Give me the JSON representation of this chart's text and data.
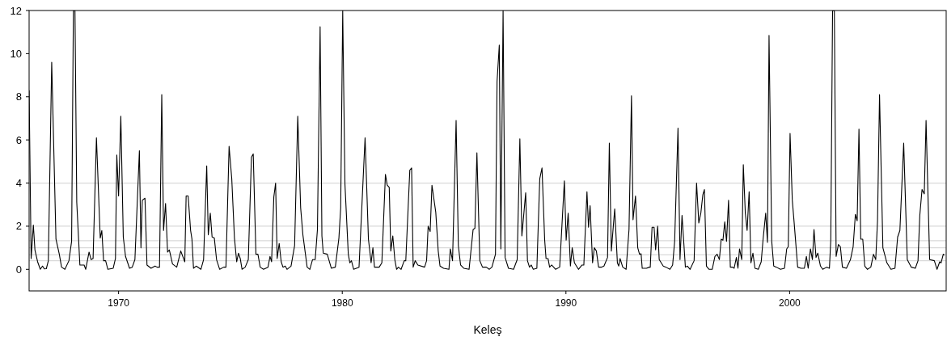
{
  "chart_data": {
    "type": "line",
    "xlabel": "Keleş",
    "xlim": [
      1966,
      2007
    ],
    "xticks": [
      1970,
      1980,
      1990,
      2000
    ],
    "ylim": [
      -1,
      12
    ],
    "yticks": [
      0,
      2,
      4,
      6,
      8,
      10,
      12
    ],
    "grid": false,
    "marker": "none",
    "line_style": "solid",
    "ref_lines": [
      {
        "axis": "y",
        "value": 0.4,
        "color": "#d9d9d9"
      },
      {
        "axis": "y",
        "value": 0.67,
        "color": "#d9d9d9"
      },
      {
        "axis": "y",
        "value": 1,
        "color": "#d9d9d9"
      },
      {
        "axis": "y",
        "value": 1.33,
        "color": "#d9d9d9"
      },
      {
        "axis": "y",
        "value": 2,
        "color": "#d9d9d9"
      },
      {
        "axis": "y",
        "value": 4,
        "color": "#d9d9d9"
      }
    ],
    "series": [
      {
        "color": "#000000",
        "x": [
          1966.0,
          1966.09,
          1966.19,
          1966.26,
          1966.38,
          1966.5,
          1966.6,
          1966.68,
          1966.77,
          1966.86,
          1967.01,
          1967.2,
          1967.35,
          1967.45,
          1967.6,
          1967.78,
          1967.9,
          1967.98,
          1968.05,
          1968.13,
          1968.27,
          1968.46,
          1968.53,
          1968.68,
          1968.77,
          1968.86,
          1969.01,
          1969.18,
          1969.25,
          1969.33,
          1969.42,
          1969.52,
          1969.76,
          1969.86,
          1969.92,
          1970.0,
          1970.1,
          1970.21,
          1970.31,
          1970.49,
          1970.61,
          1970.73,
          1970.93,
          1971.0,
          1971.06,
          1971.18,
          1971.27,
          1971.45,
          1971.63,
          1971.72,
          1971.83,
          1971.93,
          1972.01,
          1972.1,
          1972.19,
          1972.27,
          1972.41,
          1972.6,
          1972.78,
          1972.96,
          1973.02,
          1973.11,
          1973.22,
          1973.28,
          1973.35,
          1973.47,
          1973.68,
          1973.8,
          1973.94,
          1974.01,
          1974.1,
          1974.18,
          1974.28,
          1974.38,
          1974.52,
          1974.7,
          1974.8,
          1974.94,
          1975.06,
          1975.18,
          1975.28,
          1975.36,
          1975.44,
          1975.52,
          1975.66,
          1975.8,
          1975.94,
          1976.02,
          1976.14,
          1976.23,
          1976.33,
          1976.48,
          1976.68,
          1976.77,
          1976.84,
          1976.94,
          1977.02,
          1977.09,
          1977.18,
          1977.27,
          1977.35,
          1977.45,
          1977.53,
          1977.71,
          1977.87,
          1978.01,
          1978.14,
          1978.24,
          1978.43,
          1978.55,
          1978.67,
          1978.79,
          1978.89,
          1979.01,
          1979.09,
          1979.15,
          1979.33,
          1979.51,
          1979.69,
          1979.85,
          1979.93,
          1980.02,
          1980.12,
          1980.27,
          1980.34,
          1980.41,
          1980.51,
          1980.75,
          1980.97,
          1981.02,
          1981.17,
          1981.29,
          1981.37,
          1981.44,
          1981.65,
          1981.77,
          1981.93,
          1982.01,
          1982.1,
          1982.17,
          1982.26,
          1982.35,
          1982.43,
          1982.51,
          1982.63,
          1982.77,
          1982.84,
          1983.02,
          1983.1,
          1983.17,
          1983.26,
          1983.38,
          1983.68,
          1983.77,
          1983.84,
          1983.93,
          1984.01,
          1984.18,
          1984.29,
          1984.37,
          1984.53,
          1984.77,
          1984.83,
          1984.93,
          1985.09,
          1985.19,
          1985.29,
          1985.43,
          1985.67,
          1985.85,
          1985.93,
          1986.02,
          1986.15,
          1986.27,
          1986.44,
          1986.57,
          1986.69,
          1986.85,
          1986.92,
          1987.02,
          1987.09,
          1987.19,
          1987.28,
          1987.43,
          1987.66,
          1987.82,
          1987.94,
          1988.03,
          1988.2,
          1988.28,
          1988.37,
          1988.45,
          1988.54,
          1988.7,
          1988.83,
          1988.93,
          1989.05,
          1989.11,
          1989.2,
          1989.27,
          1989.36,
          1989.54,
          1989.72,
          1989.93,
          1990.01,
          1990.1,
          1990.2,
          1990.28,
          1990.38,
          1990.56,
          1990.72,
          1990.8,
          1990.94,
          1991.01,
          1991.08,
          1991.19,
          1991.27,
          1991.36,
          1991.46,
          1991.58,
          1991.7,
          1991.86,
          1991.94,
          1992.03,
          1992.18,
          1992.3,
          1992.36,
          1992.42,
          1992.54,
          1992.69,
          1992.82,
          1992.93,
          1993.0,
          1993.11,
          1993.21,
          1993.29,
          1993.36,
          1993.41,
          1993.6,
          1993.73,
          1993.77,
          1993.85,
          1993.94,
          1994.01,
          1994.1,
          1994.17,
          1994.35,
          1994.47,
          1994.65,
          1994.77,
          1994.86,
          1995.01,
          1995.1,
          1995.19,
          1995.34,
          1995.43,
          1995.55,
          1995.73,
          1995.84,
          1995.94,
          1996.03,
          1996.12,
          1996.19,
          1996.28,
          1996.4,
          1996.54,
          1996.66,
          1996.76,
          1996.86,
          1996.94,
          1997.02,
          1997.1,
          1997.18,
          1997.27,
          1997.35,
          1997.45,
          1997.52,
          1997.62,
          1997.69,
          1997.76,
          1997.86,
          1997.93,
          1998.02,
          1998.1,
          1998.19,
          1998.27,
          1998.36,
          1998.45,
          1998.6,
          1998.73,
          1998.81,
          1998.93,
          1999.01,
          1999.08,
          1999.2,
          1999.29,
          1999.41,
          1999.59,
          1999.77,
          1999.87,
          1999.94,
          2000.02,
          2000.12,
          2000.2,
          2000.36,
          2000.51,
          2000.66,
          2000.75,
          2000.83,
          2000.93,
          2001.02,
          2001.09,
          2001.18,
          2001.26,
          2001.38,
          2001.48,
          2001.66,
          2001.78,
          2001.84,
          2001.92,
          2002.0,
          2002.08,
          2002.18,
          2002.27,
          2002.36,
          2002.54,
          2002.72,
          2002.84,
          2002.94,
          2003.02,
          2003.1,
          2003.18,
          2003.27,
          2003.36,
          2003.48,
          2003.63,
          2003.75,
          2003.85,
          2003.93,
          2004.02,
          2004.17,
          2004.35,
          2004.53,
          2004.71,
          2004.83,
          2004.93,
          2005.1,
          2005.26,
          2005.44,
          2005.62,
          2005.74,
          2005.82,
          2005.92,
          2006.02,
          2006.1,
          2006.26,
          2006.47,
          2006.59,
          2006.71,
          2006.77,
          2006.87,
          2006.92
        ],
        "values": [
          8.3,
          0.5,
          2.05,
          0.9,
          0.35,
          0.0,
          0.15,
          0.02,
          0.03,
          0.4,
          9.6,
          1.4,
          0.7,
          0.1,
          0.0,
          0.4,
          1.3,
          12,
          12,
          3.1,
          0.2,
          0.2,
          0.0,
          0.8,
          0.45,
          0.5,
          6.1,
          1.45,
          1.8,
          0.4,
          0.4,
          0.0,
          0.05,
          0.5,
          5.3,
          3.4,
          7.1,
          1.5,
          0.6,
          0.05,
          0.1,
          0.45,
          5.5,
          1.0,
          3.2,
          3.3,
          0.2,
          0.05,
          0.15,
          0.1,
          0.1,
          8.1,
          1.8,
          3.05,
          0.8,
          0.9,
          0.25,
          0.1,
          0.85,
          0.35,
          3.4,
          3.4,
          1.8,
          1.4,
          0.05,
          0.15,
          0.0,
          0.45,
          4.8,
          1.6,
          2.6,
          1.5,
          1.45,
          0.45,
          0.0,
          0.1,
          0.1,
          5.7,
          4.2,
          1.45,
          0.35,
          0.75,
          0.5,
          0.0,
          0.1,
          0.45,
          5.2,
          5.35,
          0.7,
          0.7,
          0.1,
          0.0,
          0.1,
          0.6,
          0.35,
          3.35,
          4.0,
          0.5,
          1.2,
          0.35,
          0.1,
          0.15,
          0.0,
          0.15,
          1.1,
          7.1,
          2.85,
          1.6,
          0.1,
          0.0,
          0.45,
          0.45,
          1.85,
          11.25,
          1.55,
          0.75,
          0.7,
          0.05,
          0.1,
          1.45,
          2.85,
          12,
          3.95,
          0.7,
          0.3,
          0.4,
          0.0,
          0.1,
          5.0,
          6.1,
          1.4,
          0.3,
          1.0,
          0.1,
          0.1,
          0.3,
          4.4,
          3.9,
          3.8,
          0.85,
          1.55,
          0.45,
          0.0,
          0.1,
          0.0,
          0.4,
          0.4,
          4.6,
          4.7,
          0.1,
          0.4,
          0.2,
          0.1,
          0.4,
          2.0,
          1.75,
          3.9,
          2.65,
          0.85,
          0.15,
          0.05,
          0.0,
          0.95,
          0.4,
          6.9,
          1.1,
          0.2,
          0.05,
          0.0,
          1.85,
          1.9,
          5.4,
          0.4,
          0.1,
          0.1,
          0.0,
          0.1,
          0.7,
          8.7,
          10.4,
          0.95,
          12,
          0.55,
          0.05,
          0.0,
          0.45,
          6.05,
          1.55,
          3.55,
          0.4,
          0.1,
          0.2,
          0.0,
          0.05,
          4.2,
          4.7,
          1.35,
          0.5,
          0.5,
          0.1,
          0.2,
          0.0,
          0.1,
          4.1,
          1.35,
          2.6,
          0.15,
          1.0,
          0.3,
          0.0,
          0.2,
          0.2,
          3.6,
          1.95,
          2.95,
          0.3,
          1.0,
          0.85,
          0.1,
          0.1,
          0.15,
          0.55,
          5.85,
          0.85,
          2.8,
          0.3,
          0.15,
          0.5,
          0.1,
          0.0,
          1.85,
          8.05,
          2.3,
          3.4,
          1.0,
          0.7,
          0.72,
          0.05,
          0.05,
          0.1,
          0.1,
          1.95,
          1.95,
          0.9,
          2.0,
          0.45,
          0.15,
          0.1,
          0.0,
          0.2,
          1.3,
          6.55,
          0.45,
          2.5,
          0.1,
          0.15,
          0.0,
          0.4,
          4.0,
          2.15,
          2.6,
          3.45,
          3.7,
          0.15,
          0.0,
          0.0,
          0.6,
          0.7,
          0.45,
          1.4,
          1.35,
          2.2,
          1.3,
          3.2,
          0.1,
          0.1,
          0.05,
          0.55,
          0.05,
          0.95,
          0.45,
          4.85,
          2.6,
          1.8,
          3.6,
          0.3,
          0.75,
          0.05,
          0.0,
          0.35,
          1.35,
          2.6,
          1.25,
          10.85,
          1.3,
          0.15,
          0.1,
          0.0,
          0.05,
          0.95,
          1.05,
          6.3,
          3.2,
          2.2,
          0.1,
          0.05,
          0.05,
          0.6,
          0.05,
          0.95,
          0.45,
          1.85,
          0.55,
          0.75,
          0.15,
          0.0,
          0.1,
          0.05,
          1.35,
          12,
          12,
          0.6,
          1.15,
          1.05,
          0.1,
          0.05,
          0.45,
          1.05,
          2.55,
          2.25,
          6.5,
          1.4,
          1.4,
          0.15,
          0.0,
          0.1,
          0.7,
          0.45,
          2.25,
          8.1,
          1.0,
          0.3,
          0.0,
          0.05,
          1.5,
          1.8,
          5.85,
          0.45,
          0.1,
          0.05,
          0.4,
          2.5,
          3.7,
          3.5,
          6.9,
          0.45,
          0.4,
          0.0,
          0.35,
          0.3,
          0.7,
          0.65
        ]
      }
    ]
  }
}
